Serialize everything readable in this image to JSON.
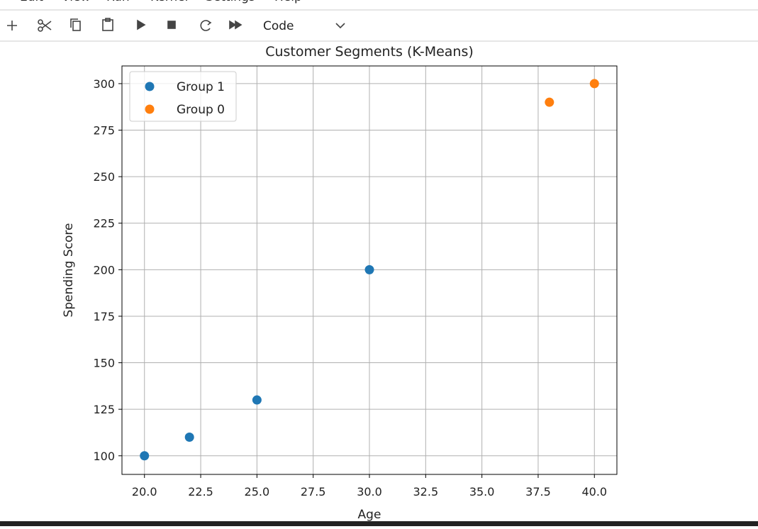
{
  "menu": [
    "Edit",
    "View",
    "Run",
    "Kernel",
    "Settings",
    "Help"
  ],
  "toolbar": {
    "cell_type": "Code"
  },
  "chart_data": {
    "type": "scatter",
    "title": "Customer Segments (K-Means)",
    "x_label": "Age",
    "y_label": "Spending Score",
    "series": [
      {
        "name": "Group 1",
        "color": "#1f77b4",
        "x": [
          20,
          22,
          25,
          30
        ],
        "values": [
          100,
          110,
          130,
          200
        ]
      },
      {
        "name": "Group 0",
        "color": "#ff7f0e",
        "x": [
          38,
          40
        ],
        "values": [
          290,
          300
        ]
      }
    ],
    "xlim": [
      19,
      41
    ],
    "xticks": [
      {
        "value": 20,
        "label": "20.0"
      },
      {
        "value": 22.5,
        "label": "22.5"
      },
      {
        "value": 25,
        "label": "25.0"
      },
      {
        "value": 27.5,
        "label": "27.5"
      },
      {
        "value": 30,
        "label": "30.0"
      },
      {
        "value": 32.5,
        "label": "32.5"
      },
      {
        "value": 35,
        "label": "35.0"
      },
      {
        "value": 37.5,
        "label": "37.5"
      },
      {
        "value": 40,
        "label": "40.0"
      }
    ],
    "ylim": [
      90,
      309.5
    ],
    "yticks": [
      100,
      125,
      150,
      175,
      200,
      225,
      250,
      275,
      300
    ],
    "grid": true,
    "legend": "upper-left"
  }
}
